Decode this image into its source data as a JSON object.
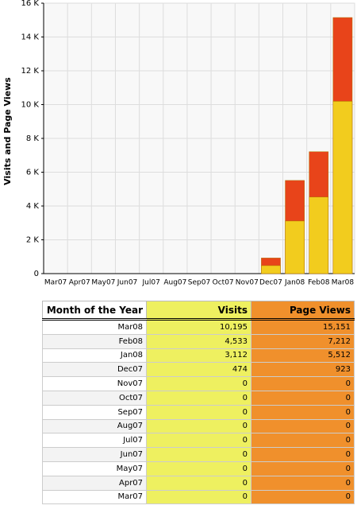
{
  "chart_data": {
    "type": "bar",
    "ylabel": "Visits and Page Views",
    "categories": [
      "Mar07",
      "Apr07",
      "May07",
      "Jun07",
      "Jul07",
      "Aug07",
      "Sep07",
      "Oct07",
      "Nov07",
      "Dec07",
      "Jan08",
      "Feb08",
      "Mar08"
    ],
    "series": [
      {
        "name": "Page Views",
        "color": "#e8441a",
        "values": [
          0,
          0,
          0,
          0,
          0,
          0,
          0,
          0,
          0,
          923,
          5512,
          7212,
          15151
        ]
      },
      {
        "name": "Visits",
        "color": "#f2cc1e",
        "values": [
          0,
          0,
          0,
          0,
          0,
          0,
          0,
          0,
          0,
          474,
          3112,
          4533,
          10195
        ]
      }
    ],
    "ylim": [
      0,
      16000
    ],
    "yticks": [
      0,
      {
        "value": 2000,
        "label": "2 K"
      },
      {
        "value": 4000,
        "label": "4 K"
      },
      {
        "value": 6000,
        "label": "6 K"
      },
      {
        "value": 8000,
        "label": "8 K"
      },
      {
        "value": 10000,
        "label": "10 K"
      },
      {
        "value": 12000,
        "label": "12 K"
      },
      {
        "value": 14000,
        "label": "14 K"
      },
      {
        "value": 16000,
        "label": "16 K"
      }
    ],
    "grid": true
  },
  "table": {
    "headers": [
      "Month of the Year",
      "Visits",
      "Page Views"
    ],
    "rows": [
      [
        "Mar08",
        "10,195",
        "15,151"
      ],
      [
        "Feb08",
        "4,533",
        "7,212"
      ],
      [
        "Jan08",
        "3,112",
        "5,512"
      ],
      [
        "Dec07",
        "474",
        "923"
      ],
      [
        "Nov07",
        "0",
        "0"
      ],
      [
        "Oct07",
        "0",
        "0"
      ],
      [
        "Sep07",
        "0",
        "0"
      ],
      [
        "Aug07",
        "0",
        "0"
      ],
      [
        "Jul07",
        "0",
        "0"
      ],
      [
        "Jun07",
        "0",
        "0"
      ],
      [
        "May07",
        "0",
        "0"
      ],
      [
        "Apr07",
        "0",
        "0"
      ],
      [
        "Mar07",
        "0",
        "0"
      ]
    ]
  }
}
